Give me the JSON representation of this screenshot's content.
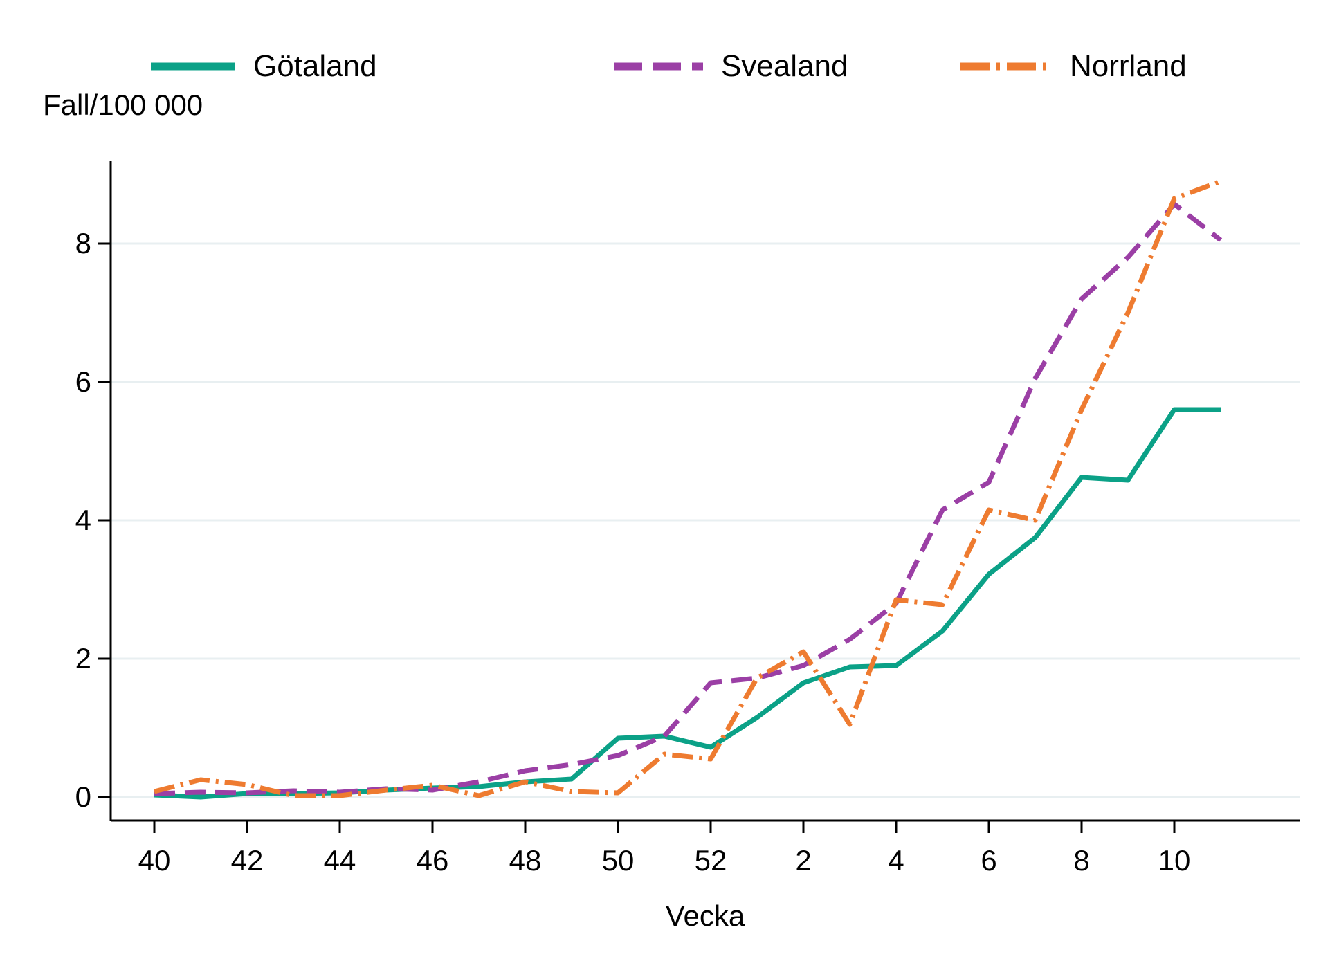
{
  "y_axis_title": "Fall/100 000",
  "x_axis_title": "Vecka",
  "legend": {
    "position": "top",
    "items": [
      {
        "label": "Götaland"
      },
      {
        "label": "Svealand"
      },
      {
        "label": "Norrland"
      }
    ]
  },
  "chart_data": {
    "type": "line",
    "title": "",
    "xlabel": "Vecka",
    "ylabel": "Fall/100 000",
    "x_categories": [
      "40",
      "41",
      "42",
      "43",
      "44",
      "45",
      "46",
      "47",
      "48",
      "49",
      "50",
      "51",
      "52",
      "1",
      "2",
      "3",
      "4",
      "5",
      "6",
      "7",
      "8",
      "9",
      "10",
      "11"
    ],
    "x_tick_labels": [
      {
        "index": 0,
        "label": "40"
      },
      {
        "index": 2,
        "label": "42"
      },
      {
        "index": 4,
        "label": "44"
      },
      {
        "index": 6,
        "label": "46"
      },
      {
        "index": 8,
        "label": "48"
      },
      {
        "index": 10,
        "label": "50"
      },
      {
        "index": 12,
        "label": "52"
      },
      {
        "index": 14,
        "label": "2"
      },
      {
        "index": 16,
        "label": "4"
      },
      {
        "index": 18,
        "label": "6"
      },
      {
        "index": 20,
        "label": "8"
      },
      {
        "index": 22,
        "label": "10"
      }
    ],
    "y_ticks": [
      0,
      2,
      4,
      6,
      8
    ],
    "ylim": [
      0,
      9.2
    ],
    "grid": "horizontal",
    "legend_position": "top",
    "colors": {
      "grid": "#e8eff1",
      "axis": "#000000",
      "gotaland": "#0ba187",
      "svealand": "#9b3fa5",
      "norrland": "#ee7b30"
    },
    "series": [
      {
        "name": "Götaland",
        "color": "#0ba187",
        "dash": "solid",
        "values": [
          0.03,
          0.0,
          0.05,
          0.05,
          0.06,
          0.1,
          0.13,
          0.15,
          0.22,
          0.26,
          0.85,
          0.88,
          0.72,
          1.15,
          1.65,
          1.88,
          1.9,
          2.4,
          3.22,
          3.75,
          4.62,
          4.58,
          5.6,
          5.6
        ]
      },
      {
        "name": "Svealand",
        "color": "#9b3fa5",
        "dash": "dash",
        "values": [
          0.05,
          0.07,
          0.06,
          0.09,
          0.07,
          0.12,
          0.1,
          0.22,
          0.38,
          0.47,
          0.6,
          0.88,
          1.65,
          1.72,
          1.9,
          2.28,
          2.8,
          4.15,
          4.55,
          6.05,
          7.2,
          7.8,
          8.57,
          8.05
        ]
      },
      {
        "name": "Norrland",
        "color": "#ee7b30",
        "dash": "dash-dot",
        "values": [
          0.08,
          0.25,
          0.18,
          0.02,
          0.02,
          0.1,
          0.17,
          0.02,
          0.22,
          0.08,
          0.06,
          0.62,
          0.55,
          1.72,
          2.1,
          1.05,
          2.85,
          2.78,
          4.15,
          4.0,
          5.6,
          7.0,
          8.65,
          8.9
        ]
      }
    ]
  }
}
